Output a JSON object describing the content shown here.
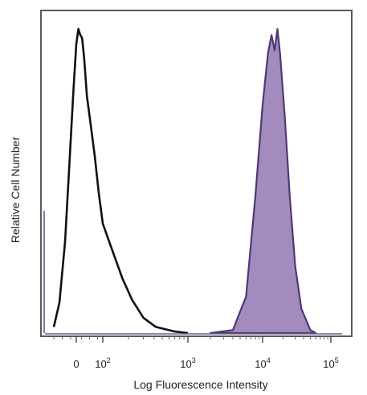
{
  "chart_data": {
    "type": "area",
    "title": "",
    "xlabel": "Log Fluorescence Intensity",
    "ylabel": "Relative Cell Number",
    "x_scale": "logicle",
    "x_ticks": [
      {
        "value": 0,
        "base": "0",
        "exp": ""
      },
      {
        "value": 100,
        "base": "10",
        "exp": "2"
      },
      {
        "value": 1000,
        "base": "10",
        "exp": "3"
      },
      {
        "value": 10000,
        "base": "10",
        "exp": "4"
      },
      {
        "value": 100000,
        "base": "10",
        "exp": "5"
      }
    ],
    "y_percent_of_max": true,
    "ylim": [
      0,
      100
    ],
    "grid": false,
    "legend": "none",
    "series": [
      {
        "style": "unfilled outline",
        "color": "#111111",
        "points": [
          [
            -80,
            2
          ],
          [
            -60,
            10
          ],
          [
            -40,
            30
          ],
          [
            -25,
            55
          ],
          [
            -10,
            80
          ],
          [
            0,
            95
          ],
          [
            8,
            100
          ],
          [
            15,
            98
          ],
          [
            22,
            97
          ],
          [
            30,
            90
          ],
          [
            40,
            78
          ],
          [
            55,
            68
          ],
          [
            70,
            58
          ],
          [
            85,
            46
          ],
          [
            100,
            36
          ],
          [
            130,
            27
          ],
          [
            170,
            18
          ],
          [
            220,
            11
          ],
          [
            300,
            5
          ],
          [
            420,
            2
          ],
          [
            700,
            0.5
          ],
          [
            1000,
            0
          ]
        ]
      },
      {
        "style": "filled",
        "color": "#4f3875",
        "fill": "#a48bbd",
        "points": [
          [
            2000,
            0
          ],
          [
            4000,
            1
          ],
          [
            6000,
            12
          ],
          [
            8000,
            45
          ],
          [
            10000,
            75
          ],
          [
            12000,
            92
          ],
          [
            13500,
            98
          ],
          [
            15000,
            93
          ],
          [
            16500,
            100
          ],
          [
            18000,
            92
          ],
          [
            21000,
            72
          ],
          [
            25000,
            45
          ],
          [
            30000,
            22
          ],
          [
            37000,
            8
          ],
          [
            50000,
            1
          ],
          [
            60000,
            0
          ]
        ]
      }
    ]
  }
}
